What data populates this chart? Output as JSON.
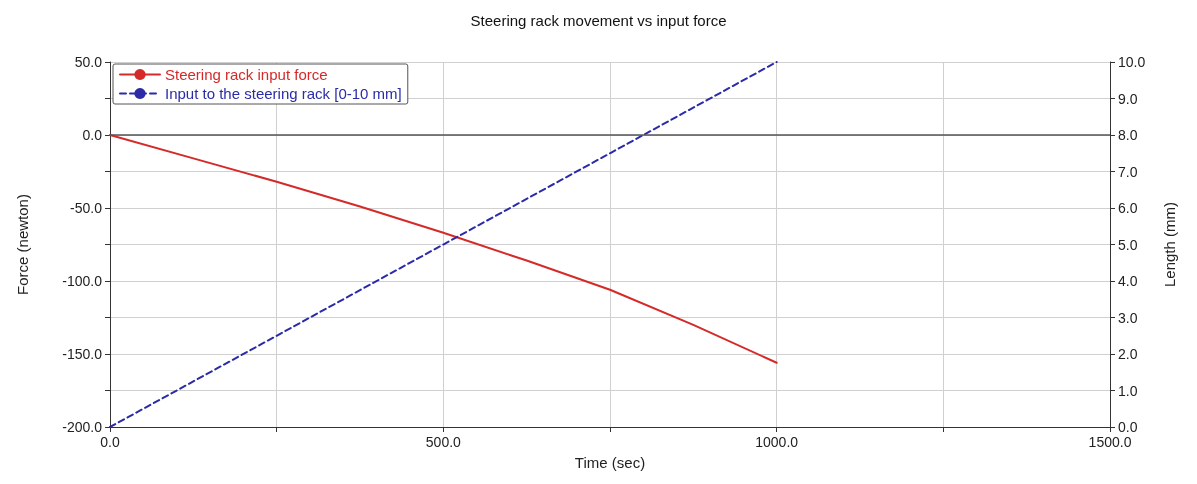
{
  "chart_data": {
    "type": "line",
    "title": "Steering rack movement vs input force",
    "xlabel": "Time (sec)",
    "ylabel": "Force (newton)",
    "y2label": "Length (mm)",
    "xlim": [
      0,
      1500
    ],
    "xticks": [
      {
        "value": 0,
        "label": "0.0"
      },
      {
        "value": 250,
        "label": null
      },
      {
        "value": 500,
        "label": "500.0"
      },
      {
        "value": 750,
        "label": null
      },
      {
        "value": 1000,
        "label": "1000.0"
      },
      {
        "value": 1250,
        "label": null
      },
      {
        "value": 1500,
        "label": "1500.0"
      }
    ],
    "ylim": [
      -200,
      50
    ],
    "yticks": [
      {
        "value": -200,
        "label": "-200.0"
      },
      {
        "value": -175,
        "label": null
      },
      {
        "value": -150,
        "label": "-150.0"
      },
      {
        "value": -125,
        "label": null
      },
      {
        "value": -100,
        "label": "-100.0"
      },
      {
        "value": -75,
        "label": null
      },
      {
        "value": -50,
        "label": "-50.0"
      },
      {
        "value": -25,
        "label": null
      },
      {
        "value": 0,
        "label": "0.0"
      },
      {
        "value": 25,
        "label": null
      },
      {
        "value": 50,
        "label": "50.0"
      }
    ],
    "y2lim": [
      0,
      10
    ],
    "y2ticks": [
      {
        "value": 0,
        "label": "0.0"
      },
      {
        "value": 1,
        "label": "1.0"
      },
      {
        "value": 2,
        "label": "2.0"
      },
      {
        "value": 3,
        "label": "3.0"
      },
      {
        "value": 4,
        "label": "4.0"
      },
      {
        "value": 5,
        "label": "5.0"
      },
      {
        "value": 6,
        "label": "6.0"
      },
      {
        "value": 7,
        "label": "7.0"
      },
      {
        "value": 8,
        "label": "8.0"
      },
      {
        "value": 9,
        "label": "9.0"
      },
      {
        "value": 10,
        "label": "10.0"
      }
    ],
    "grid": true,
    "legend": "top left",
    "marker": "none",
    "ref_lines": [
      {
        "axis": "y",
        "value": 0,
        "color": "#555555"
      }
    ],
    "series": [
      {
        "name": "Steering rack input force",
        "color": "#d42a2a",
        "line_style": "solid",
        "x": [
          0,
          125,
          250,
          375,
          500,
          625,
          750,
          875,
          1000
        ],
        "values": [
          0,
          -16,
          -32,
          -49,
          -67,
          -86,
          -106,
          -130,
          -156
        ]
      },
      {
        "name": "Input to the steering rack [0-10 mm]",
        "color": "#2b2ba8",
        "line_style": "dashed",
        "axis": "y2",
        "x": [
          0,
          1000
        ],
        "values": [
          0,
          10
        ]
      }
    ]
  }
}
